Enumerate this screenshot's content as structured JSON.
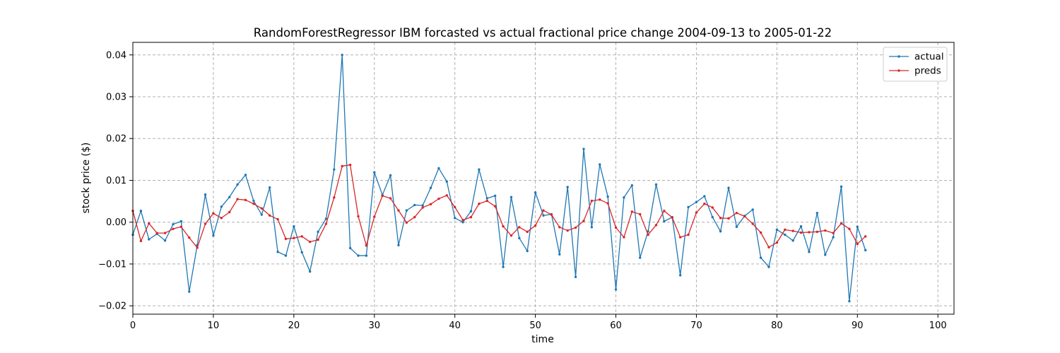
{
  "chart_data": {
    "type": "line",
    "title": "RandomForestRegressor IBM forcasted vs actual fractional price change 2004-09-13 to 2005-01-22",
    "xlabel": "time",
    "ylabel": "stock price ($)",
    "xlim": [
      0,
      102
    ],
    "ylim": [
      -0.022,
      0.043
    ],
    "xticks": [
      0,
      10,
      20,
      30,
      40,
      50,
      60,
      70,
      80,
      90,
      100
    ],
    "yticks": [
      -0.02,
      -0.01,
      0.0,
      0.01,
      0.02,
      0.03,
      0.04
    ],
    "grid": true,
    "legend_position": "top-right",
    "series": [
      {
        "name": "actual",
        "color": "#1f77b4",
        "values": [
          -0.003,
          0.0027,
          -0.0041,
          -0.0028,
          -0.0044,
          -0.0005,
          0.0002,
          -0.0166,
          -0.0055,
          0.0066,
          -0.0032,
          0.0037,
          0.006,
          0.009,
          0.0113,
          0.0051,
          0.0018,
          0.0083,
          -0.0071,
          -0.008,
          -0.001,
          -0.0072,
          -0.0118,
          -0.0023,
          0.0008,
          0.0126,
          0.04,
          -0.0062,
          -0.008,
          -0.008,
          0.0119,
          0.0065,
          0.0112,
          -0.0055,
          0.0028,
          0.0041,
          0.004,
          0.0082,
          0.0129,
          0.0097,
          0.001,
          0.0,
          0.0026,
          0.0126,
          0.0057,
          0.0063,
          -0.0107,
          0.006,
          -0.0038,
          -0.0069,
          0.0071,
          0.0016,
          0.0019,
          -0.0077,
          0.0084,
          -0.0131,
          0.0175,
          -0.0012,
          0.0138,
          0.0061,
          -0.0161,
          0.0059,
          0.0088,
          -0.0085,
          -0.0022,
          0.009,
          0.0002,
          0.0012,
          -0.0127,
          0.0036,
          0.0048,
          0.0062,
          0.0012,
          -0.0022,
          0.0082,
          -0.0011,
          0.0015,
          0.003,
          -0.0085,
          -0.0107,
          -0.0018,
          -0.003,
          -0.0044,
          -0.001,
          -0.0071,
          0.0022,
          -0.0078,
          -0.0036,
          0.0085,
          -0.0189,
          -0.0011,
          -0.0067
        ]
      },
      {
        "name": "preds",
        "color": "#d62728",
        "values": [
          0.0027,
          -0.0045,
          -0.0003,
          -0.0026,
          -0.0026,
          -0.0016,
          -0.0011,
          -0.0037,
          -0.0061,
          -0.0004,
          0.0021,
          0.001,
          0.0024,
          0.0055,
          0.0053,
          0.0044,
          0.0033,
          0.0016,
          0.0007,
          -0.004,
          -0.0038,
          -0.0034,
          -0.0047,
          -0.0042,
          -0.0004,
          0.0059,
          0.0134,
          0.0137,
          0.0014,
          -0.0056,
          0.0013,
          0.0063,
          0.0057,
          0.0028,
          -0.0001,
          0.0012,
          0.0035,
          0.0043,
          0.0056,
          0.0064,
          0.0036,
          0.0005,
          0.0012,
          0.0044,
          0.0051,
          0.0038,
          -0.001,
          -0.0032,
          -0.0012,
          -0.0023,
          -0.0008,
          0.0028,
          0.0018,
          -0.0012,
          -0.002,
          -0.0013,
          0.0003,
          0.0051,
          0.0054,
          0.0045,
          -0.0013,
          -0.0036,
          0.0025,
          0.0019,
          -0.003,
          -0.0007,
          0.0027,
          0.0011,
          -0.0036,
          -0.003,
          0.0023,
          0.0044,
          0.0035,
          0.001,
          0.0009,
          0.0022,
          0.0014,
          -0.0004,
          -0.0025,
          -0.006,
          -0.0049,
          -0.0018,
          -0.0021,
          -0.0025,
          -0.0024,
          -0.0023,
          -0.002,
          -0.0026,
          -0.0003,
          -0.0016,
          -0.0052,
          -0.0034
        ]
      }
    ]
  }
}
